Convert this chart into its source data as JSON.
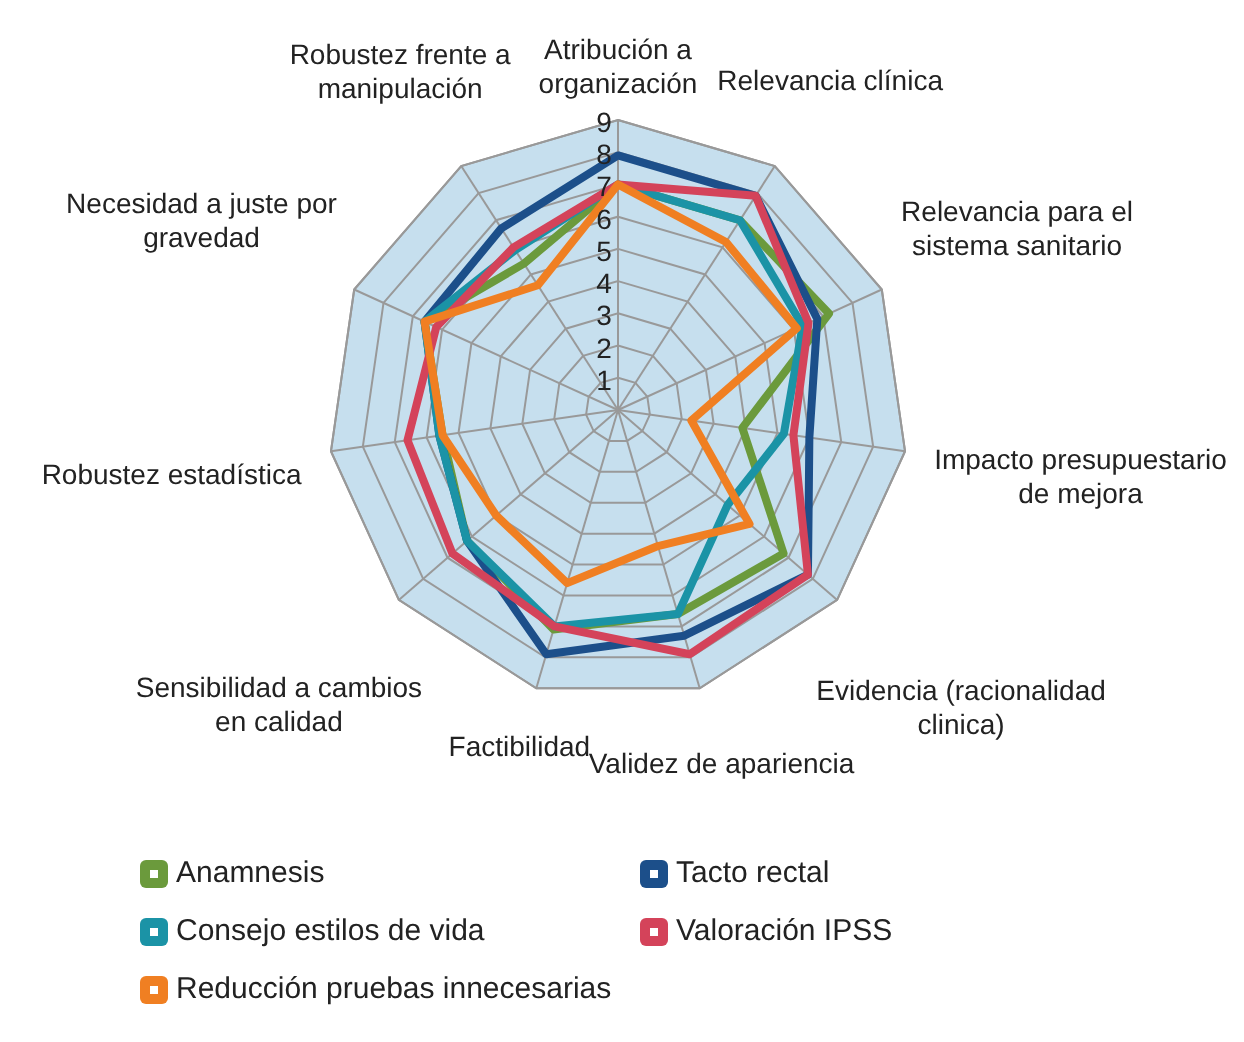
{
  "chart_data": {
    "type": "radar",
    "categories": [
      "Atribución a organización",
      "Relevancia clínica",
      "Relevancia para el sistema sanitario",
      "Impacto presupuestario de mejora",
      "Evidencia (racionalidad clinica)",
      "Validez de apariencia",
      "Factibilidad",
      "Sensibilidad a cambios en calidad",
      "Robustez estadística",
      "Necesidad a juste por gravedad",
      "Robustez frente a manipulación"
    ],
    "ylim": [
      0,
      9
    ],
    "yticks": [
      1,
      2,
      3,
      4,
      5,
      6,
      7,
      8,
      9
    ],
    "grid": true,
    "legend": "bottom",
    "marker": "none",
    "line_style": "solid",
    "series": [
      {
        "name": "Anamnesis",
        "color": "#6b9a3c",
        "values": [
          7,
          7,
          7.2,
          3.9,
          6.8,
          6.6,
          7.1,
          6.2,
          5.5,
          6.6,
          5.4
        ]
      },
      {
        "name": "Tacto rectal",
        "color": "#1c4f8a",
        "values": [
          7.9,
          7.9,
          6.8,
          6,
          7.8,
          7.3,
          7.9,
          6.2,
          5.6,
          6.6,
          6.7
        ]
      },
      {
        "name": "Consejo estilos de vida",
        "color": "#1b93a6",
        "values": [
          7,
          7,
          6.3,
          5.2,
          4.5,
          6.6,
          7,
          6.2,
          5.6,
          6.6,
          5.9
        ]
      },
      {
        "name": "Valoración IPSS",
        "color": "#d4435a",
        "values": [
          7,
          7.9,
          6.5,
          5.5,
          7.8,
          7.9,
          7,
          6.8,
          6.6,
          6.2,
          6
        ]
      },
      {
        "name": "Reducción pruebas innecesarias",
        "color": "#f07f22",
        "values": [
          7,
          6.2,
          6.1,
          2.3,
          5.4,
          4.4,
          5.6,
          5,
          5.5,
          6.6,
          4.6
        ]
      }
    ]
  }
}
